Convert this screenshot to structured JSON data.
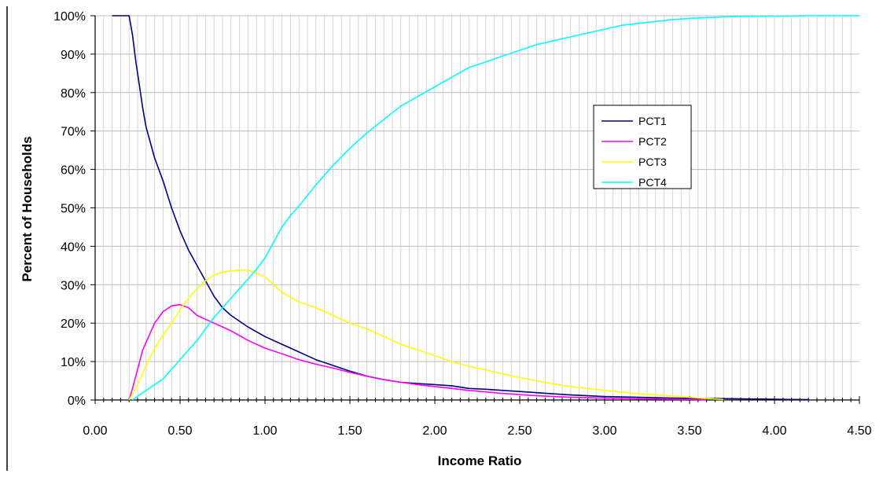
{
  "chart_data": {
    "type": "line",
    "title": "",
    "xlabel": "Income Ratio",
    "ylabel": "Percent of Households",
    "xlim": [
      0,
      4.5
    ],
    "ylim": [
      0,
      100
    ],
    "x_ticks": [
      "0.00",
      "0.50",
      "1.00",
      "1.50",
      "2.00",
      "2.50",
      "3.00",
      "3.50",
      "4.00",
      "4.50"
    ],
    "y_ticks": [
      "0%",
      "10%",
      "20%",
      "30%",
      "40%",
      "50%",
      "60%",
      "70%",
      "80%",
      "90%",
      "100%"
    ],
    "grid": true,
    "legend_position": "upper-right",
    "series": [
      {
        "name": "PCT1",
        "color": "#000080",
        "x": [
          0.1,
          0.2,
          0.22,
          0.24,
          0.26,
          0.28,
          0.3,
          0.35,
          0.4,
          0.45,
          0.5,
          0.55,
          0.6,
          0.65,
          0.7,
          0.75,
          0.8,
          0.9,
          1.0,
          1.1,
          1.2,
          1.3,
          1.4,
          1.5,
          1.6,
          1.7,
          1.8,
          1.9,
          2.0,
          2.1,
          2.2,
          2.3,
          2.4,
          2.5,
          2.6,
          2.7,
          2.8,
          2.9,
          3.0,
          3.2,
          3.4,
          3.6,
          3.8,
          4.0,
          4.2
        ],
        "values": [
          100,
          100,
          95,
          88,
          82,
          76,
          71,
          63,
          57,
          50,
          44,
          39,
          35,
          31,
          27,
          24,
          22,
          19,
          16.5,
          14.5,
          12.5,
          10.5,
          9,
          7.5,
          6.2,
          5.3,
          4.6,
          4.3,
          4.0,
          3.7,
          3.0,
          2.8,
          2.5,
          2.2,
          1.9,
          1.6,
          1.3,
          1.1,
          0.9,
          0.7,
          0.5,
          0.4,
          0.3,
          0.2,
          0.1
        ]
      },
      {
        "name": "PCT2",
        "color": "#FF00FF",
        "x": [
          0.2,
          0.22,
          0.25,
          0.28,
          0.3,
          0.35,
          0.4,
          0.45,
          0.5,
          0.55,
          0.6,
          0.7,
          0.8,
          0.9,
          1.0,
          1.1,
          1.2,
          1.3,
          1.4,
          1.5,
          1.6,
          1.7,
          1.8,
          1.9,
          2.0,
          2.1,
          2.2,
          2.3,
          2.4,
          2.5,
          2.6,
          2.7,
          2.8,
          3.0,
          3.2,
          3.4,
          3.6
        ],
        "values": [
          0,
          3,
          8,
          13,
          15,
          20,
          23,
          24.5,
          24.8,
          24,
          22,
          20,
          18,
          15.5,
          13.5,
          12,
          10.5,
          9.3,
          8.3,
          7.2,
          6.2,
          5.3,
          4.6,
          4.0,
          3.5,
          3.0,
          2.5,
          2.1,
          1.7,
          1.4,
          1.1,
          0.9,
          0.7,
          0.5,
          0.3,
          0.2,
          0.1
        ]
      },
      {
        "name": "PCT3",
        "color": "#FFFF00",
        "x": [
          0.2,
          0.25,
          0.3,
          0.35,
          0.4,
          0.45,
          0.5,
          0.55,
          0.6,
          0.65,
          0.7,
          0.75,
          0.8,
          0.85,
          0.9,
          0.95,
          1.0,
          1.1,
          1.2,
          1.3,
          1.4,
          1.5,
          1.6,
          1.7,
          1.8,
          1.9,
          2.0,
          2.1,
          2.2,
          2.3,
          2.4,
          2.5,
          2.6,
          2.7,
          2.8,
          3.0,
          3.2,
          3.4,
          3.6,
          3.7
        ],
        "values": [
          0,
          4,
          9,
          13.5,
          17,
          20,
          23.5,
          26.5,
          29,
          31,
          32.5,
          33.3,
          33.6,
          33.8,
          33.7,
          33,
          32,
          28,
          25.5,
          24,
          22,
          20,
          18.5,
          16.5,
          14.5,
          13,
          11.5,
          10,
          8.8,
          7.8,
          6.8,
          5.8,
          5.0,
          4.2,
          3.5,
          2.5,
          1.6,
          1.0,
          0.4,
          0.1
        ]
      },
      {
        "name": "PCT4",
        "color": "#00FFFF",
        "x": [
          0.22,
          0.25,
          0.3,
          0.35,
          0.4,
          0.45,
          0.5,
          0.55,
          0.6,
          0.65,
          0.7,
          0.75,
          0.8,
          0.85,
          0.9,
          0.95,
          1.0,
          1.05,
          1.1,
          1.15,
          1.2,
          1.3,
          1.4,
          1.5,
          1.6,
          1.7,
          1.8,
          1.9,
          2.0,
          2.1,
          2.2,
          2.3,
          2.4,
          2.5,
          2.6,
          2.7,
          2.8,
          2.9,
          3.0,
          3.1,
          3.2,
          3.3,
          3.4,
          3.5,
          3.6,
          3.7,
          3.8,
          4.0,
          4.2,
          4.5
        ],
        "values": [
          0,
          1,
          2.5,
          4,
          5.5,
          8,
          10.5,
          13,
          15.5,
          18.5,
          21.5,
          24,
          26.5,
          29,
          31.5,
          34,
          37,
          41,
          45,
          48,
          50.5,
          56,
          61,
          65.5,
          69.5,
          73,
          76.5,
          79,
          81.5,
          84,
          86.5,
          88,
          89.5,
          91,
          92.5,
          93.5,
          94.5,
          95.5,
          96.5,
          97.5,
          98,
          98.5,
          99,
          99.3,
          99.5,
          99.7,
          99.8,
          99.9,
          100,
          100
        ]
      }
    ]
  }
}
